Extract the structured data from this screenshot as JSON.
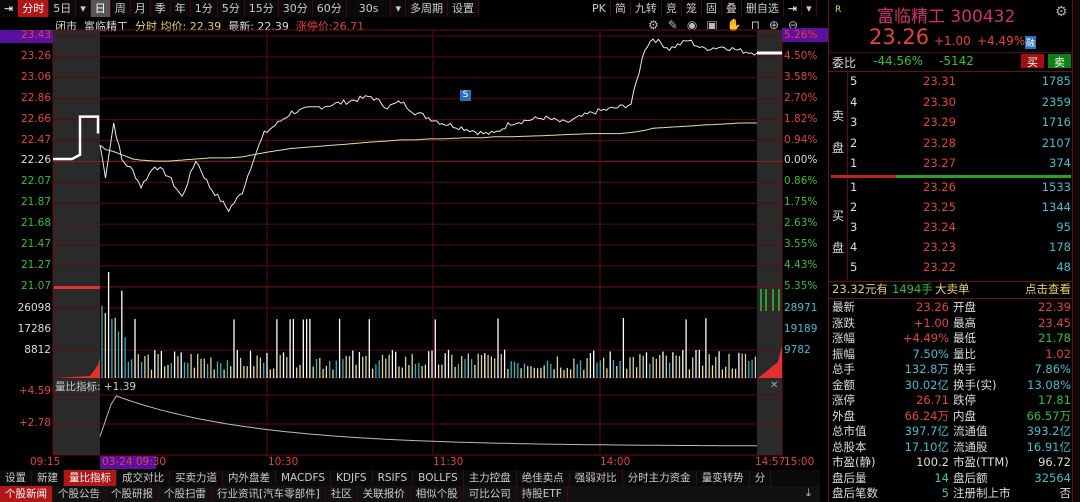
{
  "toolbar": {
    "items": [
      "分时",
      "5日",
      "日",
      "周",
      "月",
      "季",
      "年",
      "1分",
      "5分",
      "15分",
      "30分",
      "60分",
      "30s",
      "多周期",
      "设置"
    ],
    "right": [
      "PK",
      "简",
      "九转",
      "竞",
      "笼",
      "固",
      "叠",
      "删自选"
    ]
  },
  "info": {
    "status": "闭市",
    "name": "富临精工",
    "mode": "分时",
    "avg_label": "均价: 22.39",
    "last_label": "最新: 22.39",
    "limit_label": "涨停价:26.71"
  },
  "price_axis": {
    "left": [
      "23.43",
      "23.26",
      "23.06",
      "22.86",
      "22.66",
      "22.47",
      "22.26",
      "22.07",
      "21.87",
      "21.68",
      "21.47",
      "21.27",
      "21.07"
    ],
    "right": [
      "5.26%",
      "4.50%",
      "3.58%",
      "2.70%",
      "1.82%",
      "0.94%",
      "0.00%",
      "0.86%",
      "1.75%",
      "2.63%",
      "3.55%",
      "4.43%",
      "5.35%"
    ]
  },
  "volume_axis": {
    "left": [
      "26098",
      "17286",
      "8812"
    ],
    "right": [
      "28971",
      "19189",
      "9782"
    ]
  },
  "indicator": {
    "title": "量比指标: +1.39",
    "axis": [
      "+4.59",
      "+2.78"
    ]
  },
  "time_axis": [
    "09:15",
    "03-24 09:30",
    "10:30",
    "11:30",
    "14:00",
    "14:57",
    "15:00"
  ],
  "marker": "S",
  "intraday": {
    "minutes": [
      0,
      2,
      5,
      8,
      12,
      15,
      20,
      25,
      30,
      35,
      40,
      47,
      52,
      56,
      60,
      65,
      70,
      80,
      90,
      99,
      105,
      110,
      115,
      120,
      125,
      133,
      140,
      144,
      150,
      162,
      170,
      180,
      190,
      194,
      199,
      202,
      208,
      215,
      220,
      228,
      234,
      240
    ],
    "price": [
      22.39,
      22.1,
      22.6,
      22.25,
      22.15,
      22.0,
      22.2,
      22.1,
      21.9,
      22.25,
      22.0,
      21.78,
      21.95,
      22.26,
      22.5,
      22.6,
      22.7,
      22.75,
      22.8,
      22.85,
      22.75,
      22.8,
      22.7,
      22.65,
      22.6,
      22.55,
      22.5,
      22.5,
      22.6,
      22.65,
      22.6,
      22.7,
      22.75,
      22.78,
      23.3,
      23.4,
      23.3,
      23.38,
      23.3,
      23.32,
      23.28,
      23.26
    ],
    "avg": [
      22.39,
      22.35,
      22.33,
      22.3,
      22.26,
      22.25,
      22.24,
      22.24,
      22.25,
      22.26,
      22.27,
      22.27,
      22.28,
      22.3,
      22.32,
      22.34,
      22.36,
      22.38,
      22.4,
      22.42,
      22.43,
      22.44,
      22.44,
      22.45,
      22.45,
      22.46,
      22.46,
      22.47,
      22.47,
      22.48,
      22.49,
      22.5,
      22.5,
      22.51,
      22.53,
      22.55,
      22.56,
      22.57,
      22.58,
      22.59,
      22.6,
      22.6
    ]
  },
  "quote": {
    "code_tag": "R",
    "title": "富临精工 300432",
    "price": "23.26",
    "change": "+1.00",
    "pct": "+4.49%",
    "badge": "融",
    "weibi_label": "委比",
    "weibi": "-44.56%",
    "weicha": "-5142",
    "buy": "买",
    "sell": "卖"
  },
  "orderbook": {
    "sell_label": [
      "卖",
      "盘"
    ],
    "buy_label": [
      "买",
      "盘"
    ],
    "asks": [
      {
        "lv": "5",
        "p": "23.31",
        "v": "1785"
      },
      {
        "lv": "4",
        "p": "23.30",
        "v": "2359"
      },
      {
        "lv": "3",
        "p": "23.29",
        "v": "1716"
      },
      {
        "lv": "2",
        "p": "23.28",
        "v": "2107"
      },
      {
        "lv": "1",
        "p": "23.27",
        "v": "374"
      }
    ],
    "bids": [
      {
        "lv": "1",
        "p": "23.26",
        "v": "1533"
      },
      {
        "lv": "2",
        "p": "23.25",
        "v": "1344"
      },
      {
        "lv": "3",
        "p": "23.24",
        "v": "95"
      },
      {
        "lv": "4",
        "p": "23.23",
        "v": "178"
      },
      {
        "lv": "5",
        "p": "23.22",
        "v": "48"
      }
    ],
    "buy_ratio": 0.27
  },
  "bigorder": {
    "a": "23.32元有",
    "b": "1494手",
    "c": "大卖单",
    "link": "点击查看"
  },
  "stats": [
    [
      "最新",
      "23.26",
      "red",
      "开盘",
      "22.39",
      "red"
    ],
    [
      "涨跌",
      "+1.00",
      "red",
      "最高",
      "23.45",
      "red"
    ],
    [
      "涨幅",
      "+4.49%",
      "red",
      "最低",
      "21.78",
      "green"
    ],
    [
      "振幅",
      "7.50%",
      "cyan",
      "量比",
      "1.02",
      "red"
    ],
    [
      "总手",
      "132.8万",
      "cyan",
      "换手",
      "7.86%",
      "cyan"
    ],
    [
      "金额",
      "30.02亿",
      "cyan",
      "换手(实)",
      "13.08%",
      "cyan"
    ],
    [
      "涨停",
      "26.71",
      "red",
      "跌停",
      "17.81",
      "green"
    ],
    [
      "外盘",
      "66.24万",
      "red",
      "内盘",
      "66.57万",
      "green"
    ],
    [
      "总市值",
      "397.7亿",
      "cyan",
      "流通值",
      "393.2亿",
      "cyan"
    ],
    [
      "总股本",
      "17.10亿",
      "cyan",
      "流通股",
      "16.91亿",
      "cyan"
    ],
    [
      "市盈(静)",
      "100.2",
      "wh",
      "市盈(TTM)",
      "96.72",
      "wh"
    ],
    [
      "盘后量",
      "14",
      "cyan",
      "盘后额",
      "32564",
      "cyan"
    ],
    [
      "盘后笔数",
      "5",
      "cyan",
      "注册制上市",
      "否",
      "wh"
    ]
  ],
  "indicator_tabs": [
    "设置",
    "新建",
    "量比指标",
    "成交对比",
    "买卖力道",
    "内外盘差",
    "MACDFS",
    "KDJFS",
    "RSIFS",
    "BOLLFS",
    "主力控盘",
    "绝佳卖点",
    "强弱对比",
    "分时主力资金",
    "量变转势",
    "分"
  ],
  "news_tabs": [
    "个股新闻",
    "个股公告",
    "个股研报",
    "个股扫雷",
    "行业资讯[汽车零部件]",
    "社区",
    "关联报价",
    "相似个股",
    "可比公司",
    "持股ETF"
  ]
}
